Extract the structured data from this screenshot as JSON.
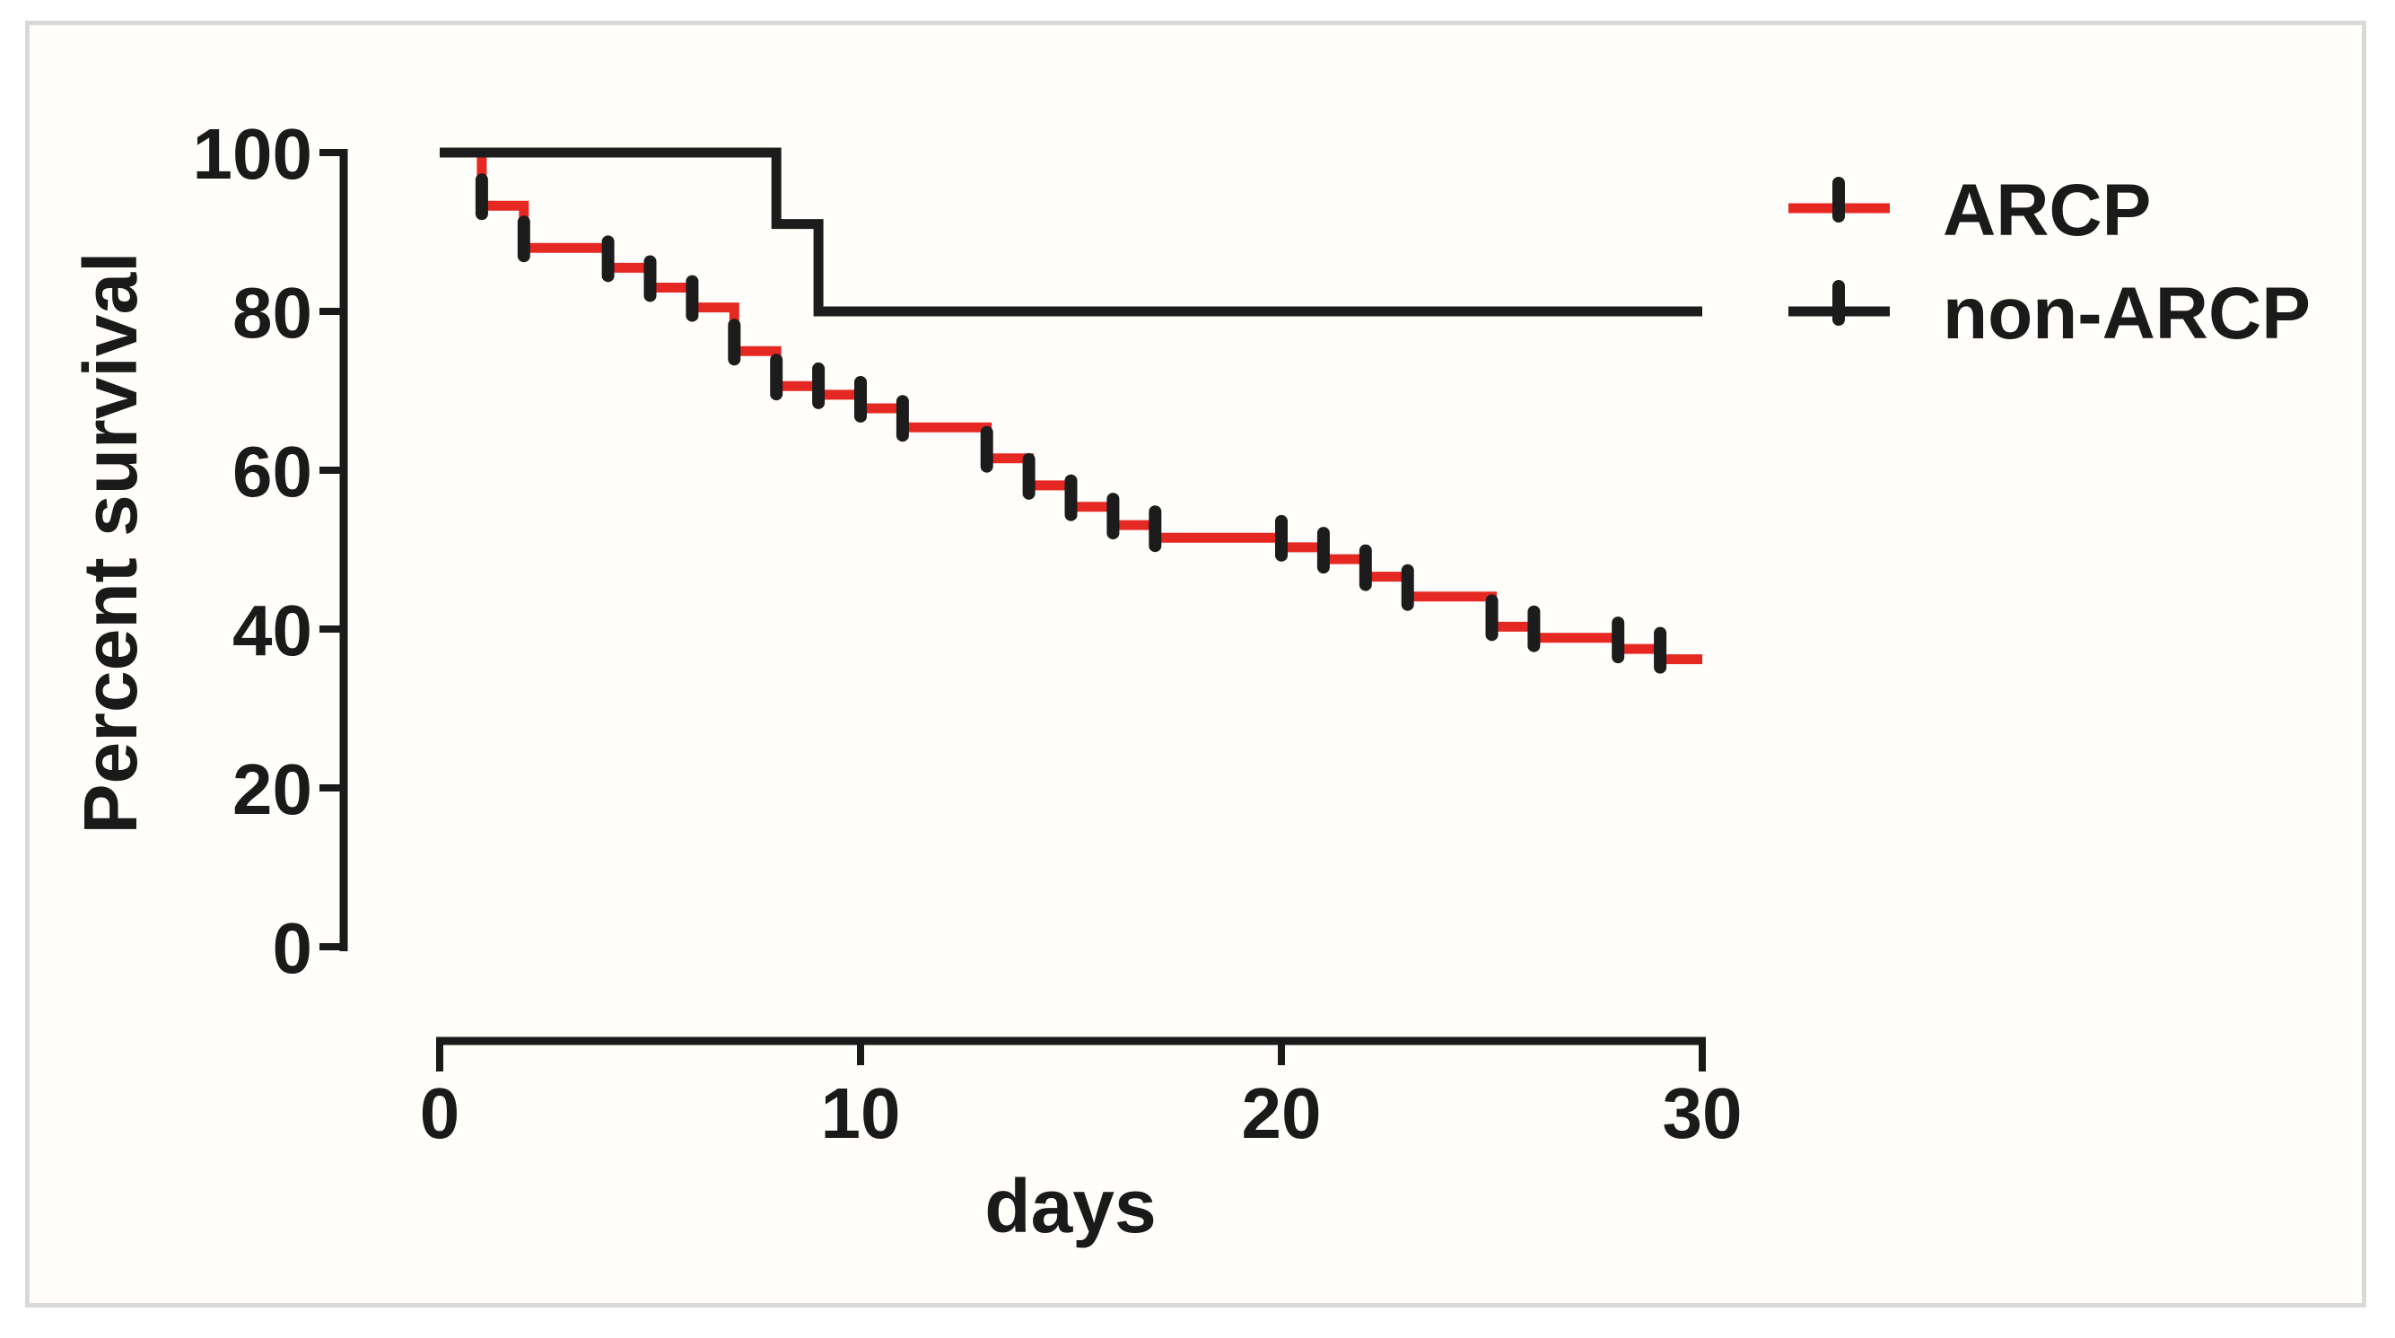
{
  "figure": {
    "background_color": "#fffefb",
    "frame_border_color": "#d9d9d9",
    "text_color": "#1a1a1a"
  },
  "chart_data": {
    "type": "line",
    "subtype": "kaplan-meier-step-curve",
    "title": "",
    "xlabel": "days",
    "ylabel": "Percent survival",
    "xlim": [
      0,
      30
    ],
    "ylim": [
      0,
      100
    ],
    "x_ticks": [
      "0",
      "10",
      "20",
      "30"
    ],
    "x_tick_values": [
      0,
      10,
      20,
      30
    ],
    "y_ticks": [
      "100",
      "80",
      "60",
      "40",
      "20",
      "0"
    ],
    "y_tick_values": [
      100,
      80,
      60,
      40,
      20,
      0
    ],
    "grid": "off",
    "legend_position": "upper-right",
    "legend": [
      {
        "label": "ARCP",
        "line_color": "#e62823",
        "tick_color": "#1c1c1c"
      },
      {
        "label": "non-ARCP",
        "line_color": "#1c1c1c",
        "tick_color": "#1c1c1c"
      }
    ],
    "series": [
      {
        "name": "ARCP",
        "color": "#e62823",
        "start": [
          0,
          100
        ],
        "end_day": 30,
        "steps": [
          [
            1,
            93.3
          ],
          [
            2,
            88.0
          ],
          [
            4,
            85.5
          ],
          [
            5,
            83.0
          ],
          [
            6,
            80.5
          ],
          [
            7,
            75.0
          ],
          [
            8,
            70.6
          ],
          [
            9,
            69.5
          ],
          [
            10,
            67.8
          ],
          [
            11,
            65.4
          ],
          [
            13,
            61.5
          ],
          [
            14,
            58.1
          ],
          [
            15,
            55.4
          ],
          [
            16,
            53.1
          ],
          [
            17,
            51.5
          ],
          [
            20,
            50.3
          ],
          [
            21,
            48.8
          ],
          [
            22,
            46.6
          ],
          [
            23,
            44.1
          ],
          [
            25,
            40.3
          ],
          [
            26,
            38.9
          ],
          [
            28,
            37.5
          ],
          [
            29,
            36.2
          ]
        ],
        "event_tick_marks": [
          [
            1,
            93.3
          ],
          [
            2,
            88.0
          ],
          [
            4,
            85.5
          ],
          [
            5,
            83.0
          ],
          [
            6,
            80.5
          ],
          [
            7,
            75.0
          ],
          [
            8,
            70.6
          ],
          [
            9,
            69.5
          ],
          [
            10,
            67.8
          ],
          [
            11,
            65.4
          ],
          [
            13,
            61.5
          ],
          [
            14,
            58.1
          ],
          [
            15,
            55.4
          ],
          [
            16,
            53.1
          ],
          [
            17,
            51.5
          ],
          [
            20,
            50.3
          ],
          [
            21,
            48.8
          ],
          [
            22,
            46.6
          ],
          [
            23,
            44.1
          ],
          [
            25,
            40.3
          ],
          [
            26,
            38.9
          ],
          [
            28,
            37.5
          ],
          [
            29,
            36.2
          ]
        ]
      },
      {
        "name": "non-ARCP",
        "color": "#1c1c1c",
        "start": [
          0,
          100
        ],
        "end_day": 30,
        "steps": [
          [
            8,
            91.0
          ],
          [
            9,
            80.0
          ]
        ],
        "event_tick_marks": []
      }
    ]
  }
}
